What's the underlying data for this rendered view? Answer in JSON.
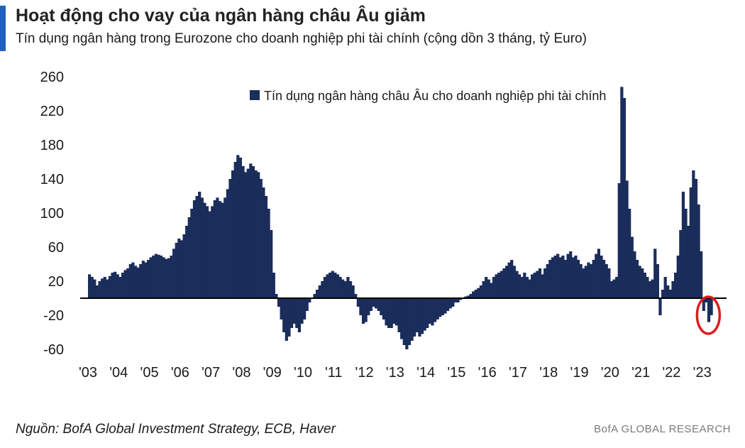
{
  "header": {
    "title": "Hoạt động cho vay của ngân hàng châu Âu giảm",
    "subtitle": "Tín dụng ngân hàng trong Eurozone cho doanh nghiệp phi tài chính (cộng dồn 3 tháng, tỷ Euro)"
  },
  "footer": {
    "source": "Nguồn: BofA Global Investment Strategy, ECB, Haver",
    "brand": "BofA GLOBAL RESEARCH"
  },
  "colors": {
    "bar": "#1b2d5b",
    "highlight": "#e01b1b",
    "accent": "#1f5fbf"
  },
  "chart_data": {
    "type": "bar",
    "title": "Hoạt động cho vay của ngân hàng châu Âu giảm",
    "subtitle": "Tín dụng ngân hàng trong Eurozone cho doanh nghiệp phi tài chính (cộng dồn 3 tháng, tỷ Euro)",
    "ylabel": "tỷ Euro",
    "ylim": [
      -60,
      260
    ],
    "yticks": [
      -60,
      -20,
      20,
      60,
      100,
      140,
      180,
      220,
      260
    ],
    "ytick_labels": [
      "-60",
      "-20",
      "20",
      "60",
      "100",
      "140",
      "180",
      "220",
      "260"
    ],
    "xlim": [
      2003.0,
      2023.4
    ],
    "xticks": [
      2003,
      2004,
      2005,
      2006,
      2007,
      2008,
      2009,
      2010,
      2011,
      2012,
      2013,
      2014,
      2015,
      2016,
      2017,
      2018,
      2019,
      2020,
      2021,
      2022,
      2023
    ],
    "xtick_labels": [
      "'03",
      "'04",
      "'05",
      "'06",
      "'07",
      "'08",
      "'09",
      "'10",
      "'11",
      "'12",
      "'13",
      "'14",
      "'15",
      "'16",
      "'17",
      "'18",
      "'19",
      "'20",
      "'21",
      "'22",
      "'23"
    ],
    "legend": {
      "label": "Tín dụng ngân hàng châu Âu cho doanh nghiệp phi tài chính",
      "position": "top-center"
    },
    "annotation": {
      "type": "circle",
      "target": "latest negative readings 2023",
      "x": 2023.2,
      "y": -20
    },
    "series": [
      {
        "name": "Tín dụng ngân hàng châu Âu cho doanh nghiệp phi tài chính",
        "frequency": "monthly",
        "start": "2003-01",
        "values": [
          28,
          25,
          22,
          15,
          20,
          23,
          25,
          22,
          26,
          30,
          31,
          28,
          25,
          30,
          33,
          35,
          40,
          42,
          38,
          36,
          40,
          44,
          42,
          45,
          48,
          50,
          52,
          51,
          50,
          48,
          46,
          47,
          50,
          58,
          65,
          70,
          68,
          75,
          85,
          95,
          105,
          115,
          120,
          125,
          118,
          112,
          108,
          102,
          108,
          115,
          118,
          114,
          112,
          118,
          128,
          140,
          150,
          160,
          168,
          165,
          155,
          148,
          152,
          158,
          155,
          150,
          148,
          140,
          130,
          120,
          105,
          80,
          30,
          5,
          -10,
          -25,
          -40,
          -50,
          -45,
          -35,
          -30,
          -35,
          -40,
          -30,
          -25,
          -15,
          -5,
          0,
          5,
          10,
          15,
          20,
          25,
          28,
          30,
          32,
          30,
          28,
          25,
          22,
          20,
          25,
          20,
          15,
          5,
          -10,
          -20,
          -30,
          -28,
          -20,
          -15,
          -10,
          -12,
          -15,
          -20,
          -25,
          -32,
          -35,
          -35,
          -30,
          -32,
          -40,
          -48,
          -55,
          -60,
          -55,
          -50,
          -45,
          -40,
          -45,
          -42,
          -38,
          -35,
          -30,
          -32,
          -28,
          -25,
          -22,
          -20,
          -18,
          -15,
          -12,
          -10,
          -5,
          -5,
          -2,
          0,
          2,
          3,
          5,
          8,
          10,
          12,
          15,
          20,
          25,
          22,
          18,
          25,
          28,
          30,
          32,
          35,
          38,
          42,
          45,
          38,
          32,
          28,
          25,
          30,
          25,
          22,
          28,
          30,
          32,
          35,
          28,
          35,
          40,
          45,
          48,
          50,
          52,
          48,
          50,
          45,
          52,
          55,
          48,
          50,
          45,
          40,
          35,
          38,
          42,
          40,
          45,
          52,
          58,
          50,
          45,
          40,
          35,
          20,
          22,
          25,
          135,
          248,
          235,
          138,
          105,
          72,
          55,
          45,
          38,
          35,
          30,
          25,
          20,
          22,
          58,
          40,
          -20,
          10,
          25,
          15,
          10,
          20,
          30,
          50,
          80,
          125,
          105,
          85,
          130,
          150,
          140,
          110,
          55,
          -15,
          -5,
          -28,
          -20
        ]
      }
    ]
  }
}
